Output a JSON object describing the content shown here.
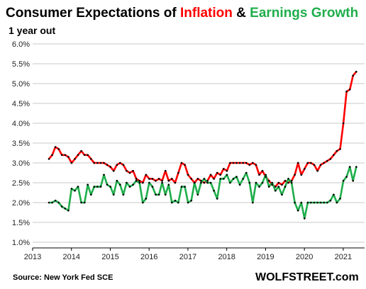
{
  "colors": {
    "text": "#000000",
    "inflation": "#ff0000",
    "earnings": "#1fae4b",
    "grid": "#c8c8c8",
    "marker": "#000000"
  },
  "chart_data": {
    "type": "line",
    "title_parts": [
      {
        "text": "Consumer Expectations of ",
        "color": "#000000"
      },
      {
        "text": "Inflation",
        "color": "#ff0000"
      },
      {
        "text": " & ",
        "color": "#000000"
      },
      {
        "text": "Earnings Growth",
        "color": "#1fae4b"
      }
    ],
    "subtitle": "1 year out",
    "source": "Source: New York Fed SCE",
    "brand": "WOLFSTREET.com",
    "x_start": 2013.42,
    "x_step": 0.08333,
    "xlim": [
      2013,
      2021.55
    ],
    "ylim": [
      1.0,
      6.0
    ],
    "x_ticks": [
      2013,
      2014,
      2015,
      2016,
      2017,
      2018,
      2019,
      2020,
      2021
    ],
    "y_ticks": [
      "1.0%",
      "1.5%",
      "2.0%",
      "2.5%",
      "3.0%",
      "3.5%",
      "4.0%",
      "4.5%",
      "5.0%",
      "5.5%",
      "6.0%"
    ],
    "grid": true,
    "legend": "none",
    "series": [
      {
        "color": "#ff0000",
        "values": [
          3.1,
          3.2,
          3.4,
          3.35,
          3.2,
          3.2,
          3.15,
          3.0,
          3.1,
          3.2,
          3.3,
          3.2,
          3.2,
          3.1,
          3.0,
          3.0,
          3.0,
          3.0,
          2.95,
          2.9,
          2.8,
          2.95,
          3.0,
          2.95,
          2.8,
          2.75,
          2.8,
          2.6,
          2.55,
          2.5,
          2.7,
          2.6,
          2.6,
          2.55,
          2.6,
          2.55,
          2.8,
          2.55,
          2.6,
          2.5,
          2.75,
          3.0,
          2.95,
          2.7,
          2.6,
          2.5,
          2.6,
          2.55,
          2.5,
          2.55,
          2.7,
          2.6,
          2.75,
          2.7,
          2.85,
          2.8,
          3.0,
          3.0,
          3.0,
          3.0,
          3.0,
          3.0,
          2.95,
          3.0,
          2.95,
          2.7,
          2.8,
          2.65,
          2.55,
          2.45,
          2.4,
          2.5,
          2.45,
          2.55,
          2.5,
          2.55,
          2.7,
          3.0,
          2.7,
          2.85,
          3.0,
          3.0,
          2.95,
          2.8,
          2.95,
          3.0,
          3.05,
          3.1,
          3.2,
          3.3,
          3.35,
          4.0,
          4.8,
          4.85,
          5.2,
          5.3
        ]
      },
      {
        "color": "#1fae4b",
        "values": [
          2.0,
          2.0,
          2.05,
          2.0,
          1.9,
          1.85,
          1.8,
          2.35,
          2.3,
          2.4,
          2.0,
          2.0,
          2.45,
          2.2,
          2.4,
          2.4,
          2.4,
          2.7,
          2.45,
          2.4,
          2.2,
          2.55,
          2.45,
          2.2,
          2.5,
          2.4,
          2.45,
          2.55,
          2.5,
          2.0,
          2.1,
          2.5,
          2.4,
          2.2,
          2.2,
          2.5,
          2.2,
          2.45,
          2.0,
          2.05,
          2.0,
          2.4,
          2.4,
          2.0,
          2.05,
          2.5,
          2.2,
          2.5,
          2.6,
          2.5,
          2.5,
          2.3,
          2.1,
          2.6,
          2.6,
          2.7,
          2.5,
          2.6,
          2.65,
          2.45,
          2.6,
          2.75,
          2.5,
          2.0,
          2.5,
          2.4,
          2.5,
          2.7,
          2.4,
          2.5,
          2.3,
          2.4,
          2.2,
          2.4,
          2.6,
          2.5,
          2.0,
          1.8,
          2.0,
          1.6,
          2.0,
          2.0,
          2.0,
          2.0,
          2.0,
          2.0,
          2.0,
          2.05,
          2.2,
          2.0,
          2.1,
          2.55,
          2.65,
          2.9,
          2.55,
          2.9
        ]
      }
    ]
  }
}
